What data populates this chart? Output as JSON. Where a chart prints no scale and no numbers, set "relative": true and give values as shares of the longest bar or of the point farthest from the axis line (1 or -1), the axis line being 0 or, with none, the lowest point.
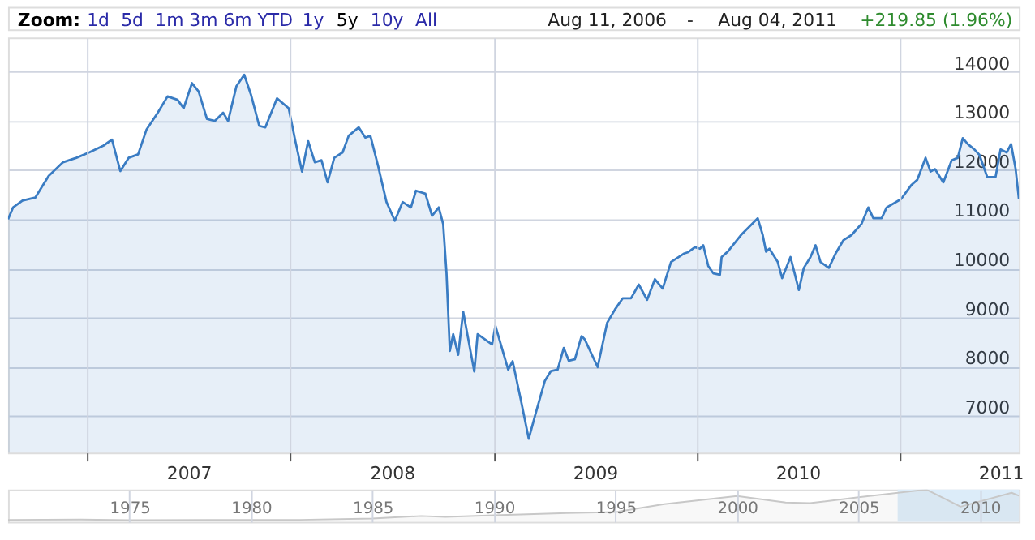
{
  "chart_data": [
    {
      "type": "area",
      "annotations": [
        "Zoom:",
        "1d",
        "5d",
        "1m",
        "3m",
        "6m",
        "YTD",
        "1y",
        "5y",
        "10y",
        "All",
        "Aug 11, 2006",
        "-",
        "Aug 04, 2011",
        "+219.85 (1.96%)"
      ],
      "x": [
        "2006-08-11",
        "2006-08-20",
        "2006-09-06",
        "2006-09-29",
        "2006-10-23",
        "2006-11-18",
        "2006-12-12",
        "2007-01-04",
        "2007-01-30",
        "2007-02-14",
        "2007-03-01",
        "2007-03-16",
        "2007-04-02",
        "2007-04-17",
        "2007-05-07",
        "2007-05-25",
        "2007-06-12",
        "2007-06-23",
        "2007-07-08",
        "2007-07-20",
        "2007-08-04",
        "2007-08-18",
        "2007-09-02",
        "2007-09-11",
        "2007-09-26",
        "2007-10-10",
        "2007-10-22",
        "2007-11-06",
        "2007-11-17",
        "2007-12-08",
        "2007-12-29",
        "2008-01-10",
        "2008-01-22",
        "2008-02-02",
        "2008-02-14",
        "2008-02-26",
        "2008-03-08",
        "2008-03-20",
        "2008-04-04",
        "2008-04-15",
        "2008-05-03",
        "2008-05-15",
        "2008-05-24",
        "2008-06-07",
        "2008-06-22",
        "2008-07-07",
        "2008-07-21",
        "2008-08-05",
        "2008-08-14",
        "2008-08-31",
        "2008-09-12",
        "2008-09-24",
        "2008-10-02",
        "2008-10-08",
        "2008-10-14",
        "2008-10-20",
        "2008-10-29",
        "2008-11-07",
        "2008-11-27",
        "2008-12-03",
        "2008-12-29",
        "2009-01-04",
        "2009-01-27",
        "2009-02-04",
        "2009-02-19",
        "2009-03-05",
        "2009-03-17",
        "2009-04-03",
        "2009-04-14",
        "2009-04-26",
        "2009-05-07",
        "2009-05-16",
        "2009-05-27",
        "2009-06-08",
        "2009-06-14",
        "2009-07-07",
        "2009-07-24",
        "2009-08-07",
        "2009-08-21",
        "2009-09-05",
        "2009-09-19",
        "2009-10-04",
        "2009-10-18",
        "2009-11-01",
        "2009-11-16",
        "2009-12-09",
        "2009-12-17",
        "2009-12-29",
        "2010-01-07",
        "2010-01-13",
        "2010-01-22",
        "2010-01-31",
        "2010-02-12",
        "2010-02-15",
        "2010-02-26",
        "2010-03-22",
        "2010-04-06",
        "2010-04-21",
        "2010-04-30",
        "2010-05-06",
        "2010-05-12",
        "2010-05-27",
        "2010-06-04",
        "2010-06-19",
        "2010-07-04",
        "2010-07-13",
        "2010-07-25",
        "2010-08-03",
        "2010-08-12",
        "2010-08-27",
        "2010-09-08",
        "2010-09-22",
        "2010-10-07",
        "2010-10-25",
        "2010-11-06",
        "2010-11-15",
        "2010-11-30",
        "2010-12-09",
        "2011-01-04",
        "2011-01-22",
        "2011-02-02",
        "2011-02-17",
        "2011-02-26",
        "2011-03-06",
        "2011-03-21",
        "2011-04-05",
        "2011-04-16",
        "2011-04-25",
        "2011-05-04",
        "2011-05-16",
        "2011-05-25",
        "2011-06-08",
        "2011-06-23",
        "2011-07-02",
        "2011-07-13",
        "2011-07-21",
        "2011-07-29",
        "2011-08-04"
      ],
      "values": [
        11000,
        11240,
        11380,
        11440,
        11880,
        12160,
        12250,
        12360,
        12500,
        12620,
        11980,
        12250,
        12320,
        12820,
        13160,
        13500,
        13430,
        13260,
        13770,
        13600,
        13040,
        13000,
        13170,
        13000,
        13710,
        13940,
        13540,
        12900,
        12870,
        13460,
        13260,
        12590,
        11970,
        12590,
        12160,
        12200,
        11750,
        12250,
        12360,
        12700,
        12870,
        12660,
        12700,
        12080,
        11350,
        10970,
        11350,
        11240,
        11580,
        11520,
        11070,
        11240,
        10900,
        9900,
        8320,
        8660,
        8240,
        9120,
        7900,
        8660,
        8450,
        8830,
        7940,
        8110,
        7310,
        6530,
        7030,
        7710,
        7910,
        7940,
        8380,
        8120,
        8150,
        8620,
        8550,
        7990,
        8890,
        9160,
        9390,
        9390,
        9670,
        9360,
        9780,
        9590,
        10130,
        10300,
        10330,
        10430,
        10400,
        10470,
        10050,
        9900,
        9870,
        10230,
        10340,
        10680,
        10850,
        11020,
        10680,
        10340,
        10400,
        10130,
        9800,
        10230,
        9560,
        10010,
        10230,
        10470,
        10130,
        10010,
        10300,
        10570,
        10680,
        10910,
        11240,
        11020,
        11020,
        11240,
        11410,
        11690,
        11800,
        12250,
        11970,
        12020,
        11750,
        12200,
        12250,
        12650,
        12530,
        12420,
        12310,
        11860,
        11860,
        12420,
        12360,
        12530,
        12030,
        11410
      ],
      "color": "#3a7cc3",
      "xlim": [
        "2006-08-11",
        "2011-08-04"
      ],
      "xticks": [
        {
          "value": "2007-01-01",
          "label": null
        },
        {
          "value": "2007-07-02",
          "label": "2007"
        },
        {
          "value": "2008-01-01",
          "label": null
        },
        {
          "value": "2008-07-02",
          "label": "2008"
        },
        {
          "value": "2009-01-01",
          "label": null
        },
        {
          "value": "2009-07-02",
          "label": "2009"
        },
        {
          "value": "2010-01-01",
          "label": null
        },
        {
          "value": "2010-07-02",
          "label": "2010"
        },
        {
          "value": "2011-01-01",
          "label": null
        },
        {
          "value": "2011-07-02",
          "label": "2011"
        }
      ],
      "ylim": [
        6250,
        14700
      ],
      "yticks": [
        7000,
        8000,
        9000,
        10000,
        11000,
        12000,
        13000,
        14000
      ],
      "grid": true
    },
    {
      "type": "area",
      "relative": true,
      "x": [
        1970,
        1973,
        1975,
        1980,
        1982,
        1985,
        1987,
        1988,
        1990,
        1993,
        1995,
        1997,
        2000,
        2002,
        2003,
        2005,
        2007.8,
        2009.2,
        2011.3,
        2011.6
      ],
      "values": [
        0.06,
        0.07,
        0.05,
        0.06,
        0.06,
        0.1,
        0.18,
        0.15,
        0.2,
        0.27,
        0.3,
        0.55,
        0.8,
        0.6,
        0.58,
        0.76,
        1.0,
        0.47,
        0.9,
        0.81
      ],
      "color": "#c8c8c8",
      "xlim": [
        1970,
        2011.6
      ],
      "xticks": [
        1975,
        1980,
        1985,
        1990,
        1995,
        2000,
        2005,
        2010
      ],
      "grid": "x",
      "tick_labels": "x",
      "bands": [
        {
          "axis": "x",
          "from": 2006.61,
          "to": 2011.6,
          "color": "#dcecf9"
        }
      ]
    }
  ]
}
